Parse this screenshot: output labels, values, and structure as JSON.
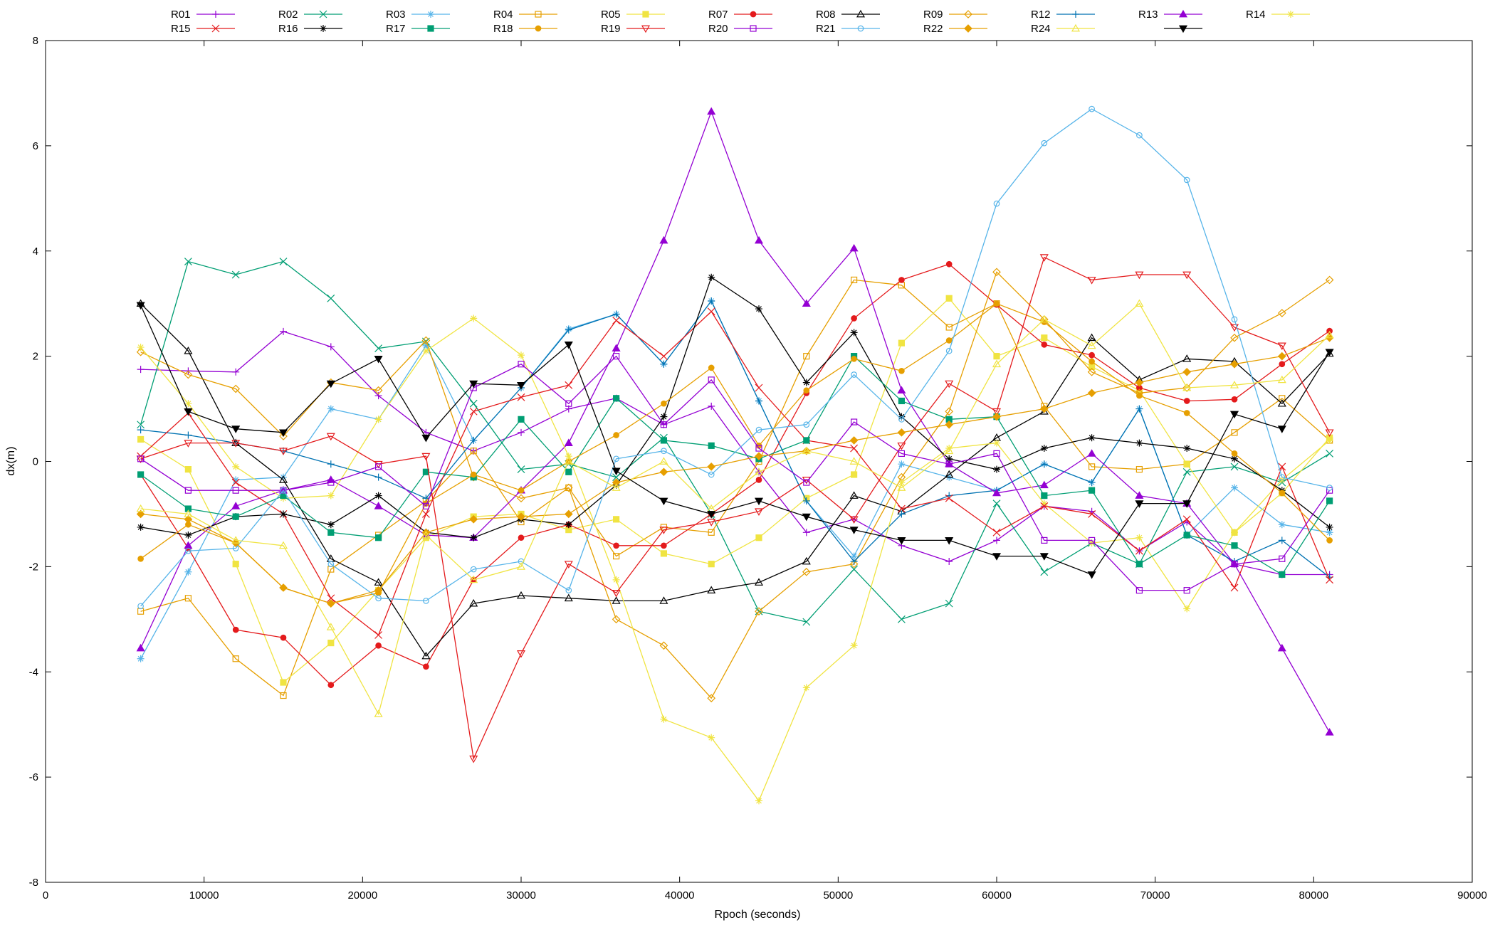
{
  "chart_data": {
    "type": "line",
    "title": "",
    "xlabel": "Rpoch (seconds)",
    "ylabel": "dx(m)",
    "xlim": [
      0,
      90000
    ],
    "ylim": [
      -8,
      8
    ],
    "xticks": [
      0,
      10000,
      20000,
      30000,
      40000,
      50000,
      60000,
      70000,
      80000,
      90000
    ],
    "yticks": [
      -8,
      -6,
      -4,
      -2,
      0,
      2,
      4,
      6,
      8
    ],
    "grid": false,
    "legend_position": "top, above plot, 2 rows",
    "x": [
      6000,
      9000,
      12000,
      15000,
      18000,
      21000,
      24000,
      27000,
      30000,
      33000,
      36000,
      39000,
      42000,
      45000,
      48000,
      51000,
      54000,
      57000,
      60000,
      63000,
      66000,
      69000,
      72000,
      75000,
      78000,
      81000
    ],
    "series": [
      {
        "name": "R01",
        "color": "#9400d3",
        "marker": "plus",
        "values": [
          1.75,
          1.72,
          1.7,
          2.47,
          2.18,
          1.25,
          0.55,
          0.2,
          0.55,
          1.0,
          1.2,
          0.7,
          1.05,
          -0.2,
          -1.35,
          -1.1,
          -1.6,
          -1.9,
          -1.5,
          -0.85,
          -0.95,
          -1.7,
          -1.15,
          -1.95,
          -2.15,
          -2.15
        ]
      },
      {
        "name": "R02",
        "color": "#009e73",
        "marker": "x",
        "values": [
          0.7,
          3.8,
          3.55,
          3.8,
          3.1,
          2.15,
          2.28,
          1.1,
          -0.15,
          -0.05,
          -0.3,
          0.45,
          -1.0,
          -2.85,
          -3.05,
          -2.05,
          -3.0,
          -2.7,
          -0.8,
          -2.1,
          -1.55,
          -1.95,
          -0.2,
          -0.1,
          -0.4,
          0.15
        ]
      },
      {
        "name": "R03",
        "color": "#56b4e9",
        "marker": "star",
        "values": [
          -3.75,
          -2.1,
          -0.35,
          -0.3,
          1.0,
          0.8,
          2.2,
          0.4,
          1.4,
          2.52,
          2.8,
          1.85,
          3.05,
          1.15,
          -0.75,
          -1.8,
          -0.05,
          -0.3,
          -0.55,
          -0.05,
          -0.4,
          1.0,
          -1.4,
          -0.5,
          -1.2,
          -1.35
        ]
      },
      {
        "name": "R04",
        "color": "#e69f00",
        "marker": "square",
        "values": [
          -2.85,
          -2.6,
          -3.75,
          -4.45,
          -2.05,
          -1.4,
          -0.75,
          0.2,
          -1.15,
          -0.5,
          -1.8,
          -1.25,
          -1.35,
          0.0,
          2.0,
          3.45,
          3.35,
          2.55,
          3.0,
          1.05,
          -0.1,
          -0.15,
          -0.05,
          0.55,
          1.2,
          0.4
        ]
      },
      {
        "name": "R05",
        "color": "#f0e442",
        "marker": "square-filled",
        "values": [
          0.42,
          -0.15,
          -1.95,
          -4.2,
          -3.45,
          -2.45,
          -1.45,
          -1.05,
          -1.0,
          -1.3,
          -1.1,
          -1.75,
          -1.95,
          -1.45,
          -0.7,
          -0.25,
          2.25,
          3.1,
          2.0,
          2.35,
          1.8,
          1.35,
          -0.05,
          -1.35,
          -0.6,
          0.45
        ]
      },
      {
        "name": "R07",
        "color": "#e41a1c",
        "marker": "circle-filled",
        "values": [
          -0.25,
          -1.65,
          -3.2,
          -3.35,
          -4.25,
          -3.5,
          -3.9,
          -2.25,
          -1.45,
          -1.2,
          -1.6,
          -1.6,
          -1.0,
          -0.35,
          1.3,
          2.72,
          3.45,
          3.75,
          2.98,
          2.22,
          2.02,
          1.4,
          1.15,
          1.18,
          1.85,
          2.48
        ]
      },
      {
        "name": "R08",
        "color": "#000000",
        "marker": "triangle",
        "values": [
          3.0,
          2.1,
          0.35,
          -0.35,
          -1.85,
          -2.3,
          -3.7,
          -2.7,
          -2.55,
          -2.6,
          -2.65,
          -2.65,
          -2.45,
          -2.3,
          -1.9,
          -0.65,
          -0.95,
          -0.25,
          0.45,
          0.95,
          2.35,
          1.55,
          1.95,
          1.9,
          1.1,
          2.05
        ]
      },
      {
        "name": "R09",
        "color": "#e69f00",
        "marker": "diamond",
        "values": [
          2.08,
          1.65,
          1.38,
          0.48,
          1.5,
          1.35,
          2.3,
          -0.3,
          -0.7,
          -0.5,
          -3.0,
          -3.5,
          -4.5,
          -2.85,
          -2.1,
          -1.95,
          -0.3,
          0.95,
          3.6,
          2.7,
          1.7,
          1.3,
          1.4,
          2.35,
          2.82,
          3.45
        ]
      },
      {
        "name": "R12",
        "color": "#0072b2",
        "marker": "plus",
        "values": [
          0.6,
          0.5,
          0.35,
          0.2,
          -0.05,
          -0.3,
          -0.7,
          0.4,
          1.4,
          2.5,
          2.8,
          1.85,
          3.05,
          1.15,
          -0.75,
          -1.9,
          -1.0,
          -0.65,
          -0.55,
          -0.05,
          -0.4,
          1.0,
          -1.4,
          -1.9,
          -1.5,
          -2.2
        ]
      },
      {
        "name": "R13",
        "color": "#9400d3",
        "marker": "triangle-filled",
        "values": [
          -3.55,
          -1.6,
          -0.85,
          -0.55,
          -0.35,
          -0.85,
          -1.4,
          -1.45,
          -0.55,
          0.35,
          2.15,
          4.2,
          6.65,
          4.2,
          3.0,
          4.05,
          1.35,
          -0.05,
          -0.6,
          -0.45,
          0.15,
          -0.65,
          -0.8,
          -1.95,
          -3.55,
          -5.15
        ]
      },
      {
        "name": "R14",
        "color": "#f0e442",
        "marker": "star",
        "values": [
          2.17,
          1.1,
          -0.1,
          -0.7,
          -0.65,
          0.8,
          2.1,
          2.72,
          2.02,
          0.1,
          -2.25,
          -4.9,
          -5.25,
          -6.45,
          -4.3,
          -3.5,
          -0.4,
          0.25,
          0.35,
          -0.8,
          -1.55,
          -1.45,
          -2.8,
          -1.35,
          -0.35,
          0.4
        ]
      },
      {
        "name": "R15",
        "color": "#e41a1c",
        "marker": "x",
        "values": [
          0.1,
          0.92,
          -0.4,
          -1.0,
          -2.6,
          -3.3,
          -1.0,
          0.95,
          1.22,
          1.45,
          2.68,
          2.0,
          2.85,
          1.4,
          0.4,
          0.25,
          -0.9,
          -0.7,
          -1.35,
          -0.85,
          -1.0,
          -1.7,
          -1.1,
          -2.4,
          -0.1,
          -2.25
        ]
      },
      {
        "name": "R16",
        "color": "#000000",
        "marker": "star",
        "values": [
          -1.25,
          -1.4,
          -1.05,
          -1.0,
          -1.2,
          -0.65,
          -1.35,
          -1.45,
          -1.1,
          -1.2,
          -0.45,
          0.85,
          3.5,
          2.9,
          1.5,
          2.45,
          0.85,
          0.05,
          -0.15,
          0.25,
          0.45,
          0.35,
          0.25,
          0.05,
          -0.55,
          -1.25
        ]
      },
      {
        "name": "R17",
        "color": "#009e73",
        "marker": "square-filled",
        "values": [
          -0.25,
          -0.9,
          -1.05,
          -0.65,
          -1.35,
          -1.45,
          -0.2,
          -0.3,
          0.8,
          -0.2,
          1.2,
          0.4,
          0.3,
          0.05,
          0.4,
          2.0,
          1.15,
          0.8,
          0.85,
          -0.65,
          -0.55,
          -1.95,
          -1.4,
          -1.6,
          -2.15,
          -0.75
        ]
      },
      {
        "name": "R18",
        "color": "#e69f00",
        "marker": "circle-filled",
        "values": [
          -1.85,
          -1.2,
          -1.55,
          -2.4,
          -2.7,
          -2.5,
          -0.8,
          -0.25,
          -0.55,
          0.0,
          0.5,
          1.1,
          1.78,
          0.3,
          1.35,
          1.95,
          1.72,
          2.3,
          3.0,
          2.65,
          1.9,
          1.25,
          0.92,
          0.15,
          -0.6,
          -1.5
        ]
      },
      {
        "name": "R19",
        "color": "#e41a1c",
        "marker": "triangle-down",
        "values": [
          0.05,
          0.35,
          0.35,
          0.2,
          0.48,
          -0.05,
          0.1,
          -5.65,
          -3.65,
          -1.95,
          -2.5,
          -1.3,
          -1.15,
          -0.95,
          -0.35,
          -1.1,
          0.3,
          1.48,
          0.95,
          3.88,
          3.45,
          3.55,
          3.55,
          2.55,
          2.2,
          0.55
        ]
      },
      {
        "name": "R20",
        "color": "#9400d3",
        "marker": "square",
        "values": [
          0.05,
          -0.55,
          -0.55,
          -0.55,
          -0.4,
          -0.1,
          -0.85,
          1.4,
          1.85,
          1.1,
          2.0,
          0.7,
          1.55,
          0.25,
          -0.4,
          0.75,
          0.15,
          -0.05,
          0.15,
          -1.5,
          -1.5,
          -2.45,
          -2.45,
          -1.95,
          -1.85,
          -0.55
        ]
      },
      {
        "name": "R21",
        "color": "#56b4e9",
        "marker": "circle",
        "values": [
          -2.75,
          -1.7,
          -1.65,
          -0.55,
          -1.95,
          -2.6,
          -2.65,
          -2.05,
          -1.9,
          -2.45,
          0.05,
          0.2,
          -0.25,
          0.6,
          0.7,
          1.65,
          0.8,
          2.1,
          4.9,
          6.05,
          6.7,
          6.2,
          5.35,
          2.7,
          -0.3,
          -0.5
        ]
      },
      {
        "name": "R22",
        "color": "#e69f00",
        "marker": "diamond-filled",
        "values": [
          -1.0,
          -1.1,
          -1.55,
          -2.4,
          -2.7,
          -2.45,
          -1.35,
          -1.1,
          -1.05,
          -1.0,
          -0.4,
          -0.2,
          -0.1,
          0.1,
          0.2,
          0.4,
          0.55,
          0.7,
          0.85,
          1.0,
          1.3,
          1.5,
          1.7,
          1.85,
          2.0,
          2.35
        ]
      },
      {
        "name": "R24",
        "color": "#f0e442",
        "marker": "triangle",
        "values": [
          -0.9,
          -1.0,
          -1.5,
          -1.6,
          -3.15,
          -4.8,
          -1.4,
          -2.25,
          -2.0,
          0.0,
          -0.5,
          0.0,
          -0.9,
          -0.2,
          0.2,
          0.0,
          -0.5,
          0.2,
          1.85,
          2.7,
          2.2,
          3.0,
          1.4,
          1.45,
          1.55,
          2.4
        ]
      },
      {
        "name": "",
        "color": "#000000",
        "marker": "triangle-down-filled",
        "values": [
          2.97,
          0.95,
          0.62,
          0.55,
          1.48,
          1.95,
          0.45,
          1.48,
          1.45,
          2.22,
          -0.18,
          -0.75,
          -1.0,
          -0.75,
          -1.05,
          -1.3,
          -1.5,
          -1.5,
          -1.8,
          -1.8,
          -2.15,
          -0.8,
          -0.8,
          0.9,
          0.62,
          2.08
        ]
      }
    ]
  }
}
